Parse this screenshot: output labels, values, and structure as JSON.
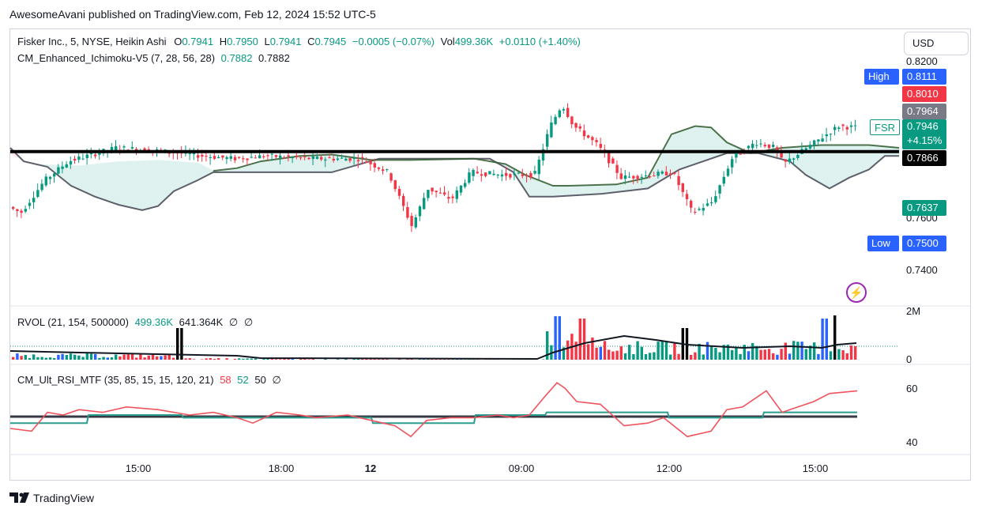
{
  "publisher": "AwesomeAvani published on TradingView.com, Feb 12, 2024 15:52 UTC-5",
  "main_legend": {
    "symbol": "Fisker Inc., 5, NYSE, Heikin Ashi",
    "o_label": "O",
    "o": "0.7941",
    "h_label": "H",
    "h": "0.7950",
    "l_label": "L",
    "l": "0.7941",
    "c_label": "C",
    "c": "0.7945",
    "change": "−0.0005 (−0.07%)",
    "vol_label": "Vol",
    "vol": "499.36K",
    "vol_change": "+0.0110 (+1.40%)"
  },
  "ichimoku_legend": {
    "name": "CM_Enhanced_Ichimoku-V5 (7, 28, 56, 28)",
    "v1": "0.7882",
    "v2": "0.7882"
  },
  "rvol_legend": {
    "name": "RVOL (21, 154, 500000)",
    "v1": "499.36K",
    "v2": "641.364K",
    "v3": "∅",
    "v4": "∅"
  },
  "rsi_legend": {
    "name": "CM_Ult_RSI_MTF (35, 85, 15, 15, 120, 21)",
    "v1": "58",
    "v2": "52",
    "v3": "50",
    "v4": "∅"
  },
  "currency": "USD",
  "price_axis": [
    "0.8200",
    "0.7600",
    "0.7400"
  ],
  "price_labels": {
    "high_tag": "High",
    "high": "0.8111",
    "r1": "0.8010",
    "g1": "0.7964",
    "ticker": "FSR",
    "last": "0.7946",
    "pct": "+4.15%",
    "line": "0.7866",
    "cloud": "0.7637",
    "low_tag": "Low",
    "low": "0.7500"
  },
  "rvol_axis": [
    "2M",
    "0"
  ],
  "rsi_axis": [
    "60",
    "40"
  ],
  "time_axis": [
    "15:00",
    "18:00",
    "12",
    "09:00",
    "12:00",
    "15:00"
  ],
  "brand": "TradingView",
  "colors": {
    "up": "#089981",
    "down": "#f23645",
    "blue": "#2962ff",
    "label_blue": "#2962ff",
    "grey": "#787b86"
  },
  "chart_data": {
    "type": "candlestick",
    "symbol": "FSR",
    "interval": "5",
    "ylim": [
      0.73,
      0.825
    ],
    "hline": 0.7866,
    "ohlc_summary": {
      "open": 0.7941,
      "high": 0.795,
      "low": 0.7941,
      "close": 0.7945
    },
    "session_high": 0.8111,
    "session_low": 0.75,
    "indicators": {
      "rvol": {
        "ylim": [
          0,
          2000000
        ],
        "last": 499360,
        "avg": 641364
      },
      "rsi": {
        "ylim": [
          32,
          68
        ],
        "values_last": [
          58,
          52,
          50
        ]
      }
    }
  }
}
